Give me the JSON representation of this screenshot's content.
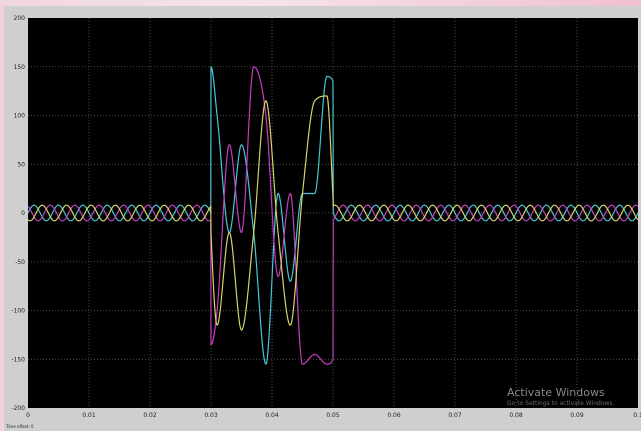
{
  "colors": {
    "background": "#000000",
    "frame": "#cfcfcf",
    "grid": "#5f5f5f",
    "series_a": "#45c7d6",
    "series_b": "#c43ec0",
    "series_c": "#d8d26a"
  },
  "watermark": {
    "title": "Activate Windows",
    "subtitle": "Go to Settings to activate Windows."
  },
  "status": {
    "time_offset": "Time offset:  0"
  },
  "chart_data": {
    "type": "line",
    "title": "",
    "xlabel": "",
    "ylabel": "",
    "xlim": [
      0,
      0.1
    ],
    "ylim": [
      -200,
      200
    ],
    "grid": true,
    "legend": "none",
    "x_ticks": [
      "0",
      "0.01",
      "0.02",
      "0.03",
      "0.04",
      "0.05",
      "0.06",
      "0.07",
      "0.08",
      "0.09",
      "0.1"
    ],
    "y_ticks": [
      "200",
      "150",
      "100",
      "50",
      "0",
      "-50",
      "-100",
      "-150",
      "-200"
    ],
    "normal_amplitude": 8,
    "normal_frequency_hz": 250,
    "fault_start": 0.03,
    "fault_end": 0.05,
    "series": [
      {
        "color": "#45c7d6",
        "x": [
          0,
          0.0299,
          0.03,
          0.031,
          0.033,
          0.035,
          0.037,
          0.039,
          0.041,
          0.043,
          0.045,
          0.047,
          0.049,
          0.05,
          0.0501,
          0.1
        ],
        "y": [
          0,
          0,
          150,
          100,
          -20,
          70,
          -20,
          -155,
          20,
          -70,
          20,
          20,
          140,
          135,
          0,
          0
        ]
      },
      {
        "color": "#c43ec0",
        "x": [
          0,
          0.0299,
          0.03,
          0.031,
          0.033,
          0.035,
          0.037,
          0.039,
          0.041,
          0.043,
          0.045,
          0.047,
          0.049,
          0.05,
          0.0501,
          0.1
        ],
        "y": [
          0,
          0,
          -135,
          -100,
          70,
          -20,
          150,
          100,
          -65,
          20,
          -155,
          -145,
          -155,
          -150,
          0,
          0
        ]
      },
      {
        "color": "#d8d26a",
        "x": [
          0,
          0.0299,
          0.03,
          0.031,
          0.033,
          0.035,
          0.037,
          0.039,
          0.041,
          0.043,
          0.045,
          0.047,
          0.049,
          0.05,
          0.0501,
          0.1
        ],
        "y": [
          0,
          0,
          -20,
          -115,
          -20,
          -120,
          -20,
          115,
          -20,
          -115,
          20,
          115,
          120,
          15,
          0,
          0
        ]
      }
    ]
  }
}
